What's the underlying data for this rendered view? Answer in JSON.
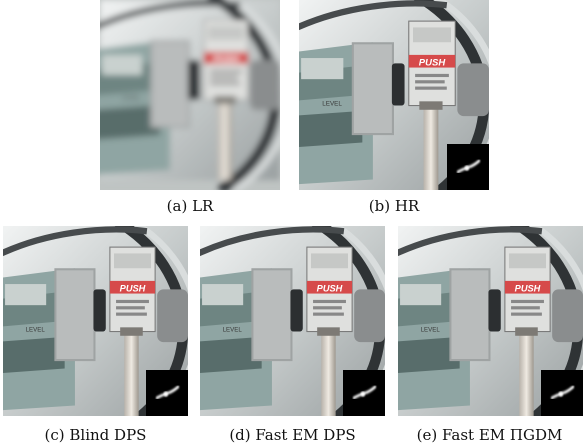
{
  "figure": {
    "panels": [
      {
        "id": "lr",
        "caption": "(a) LR",
        "blurred": true,
        "kernel_inset": false
      },
      {
        "id": "hr",
        "caption": "(b) HR",
        "blurred": false,
        "kernel_inset": true
      },
      {
        "id": "blind-dps",
        "caption": "(c) Blind DPS",
        "blurred": false,
        "kernel_inset": true
      },
      {
        "id": "fast-em-dps",
        "caption": "(d) Fast EM DPS",
        "blurred": false,
        "kernel_inset": true
      },
      {
        "id": "fast-em-pigdm",
        "caption": "(e) Fast EM ΠGDM",
        "blurred": false,
        "kernel_inset": true
      }
    ],
    "scene_text": {
      "push": "PUSH",
      "level": "LEVEL"
    },
    "colors": {
      "metal_light": "#e2e6e6",
      "metal_dark": "#3b3f41",
      "label_red": "#d64a4a",
      "inset_bg": "#000000"
    }
  }
}
